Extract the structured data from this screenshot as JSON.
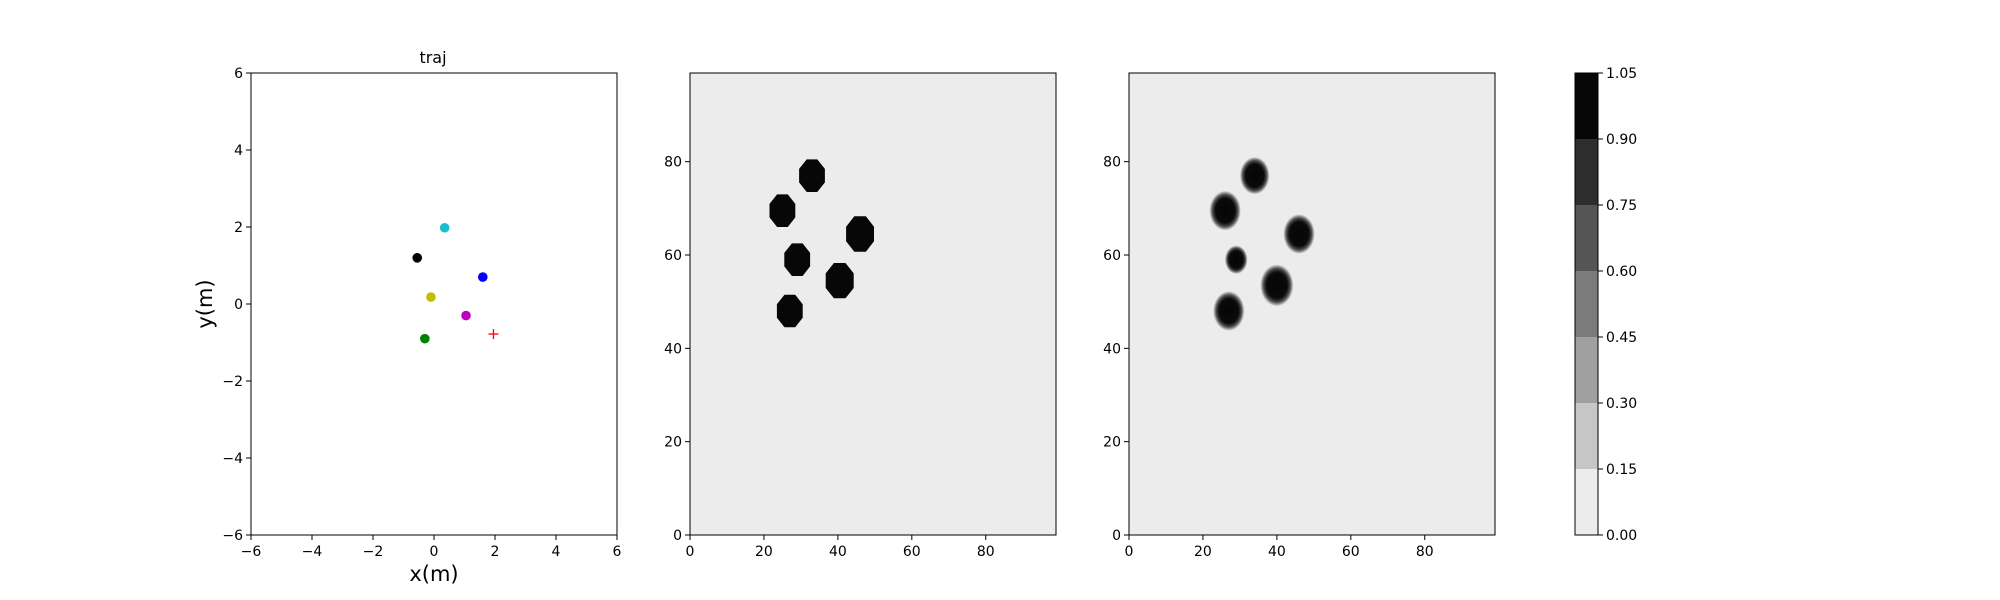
{
  "chart_data": [
    {
      "type": "scatter",
      "title": "traj",
      "xlabel": "x(m)",
      "ylabel": "y(m)",
      "xlim": [
        -6,
        6
      ],
      "ylim": [
        -6,
        6
      ],
      "xticks": [
        "−6",
        "−4",
        "−2",
        "0",
        "2",
        "4",
        "6"
      ],
      "yticks": [
        "−6",
        "−4",
        "−2",
        "0",
        "2",
        "4",
        "6"
      ],
      "grid": false,
      "points": [
        {
          "x": 0.35,
          "y": 1.98,
          "color": "#17becf",
          "marker": "circle"
        },
        {
          "x": -0.55,
          "y": 1.2,
          "color": "#000000",
          "marker": "circle"
        },
        {
          "x": 1.6,
          "y": 0.7,
          "color": "#0000ff",
          "marker": "circle"
        },
        {
          "x": -0.1,
          "y": 0.18,
          "color": "#bfbf00",
          "marker": "circle"
        },
        {
          "x": 1.05,
          "y": -0.3,
          "color": "#bf00bf",
          "marker": "circle"
        },
        {
          "x": -0.3,
          "y": -0.9,
          "color": "#008000",
          "marker": "circle"
        },
        {
          "x": 1.95,
          "y": -0.78,
          "color": "#ff0000",
          "marker": "plus"
        }
      ]
    },
    {
      "type": "heatmap",
      "xlim": [
        0,
        99
      ],
      "ylim": [
        0,
        99
      ],
      "xticks": [
        "0",
        "20",
        "40",
        "60",
        "80"
      ],
      "yticks": [
        "0",
        "20",
        "40",
        "60",
        "80"
      ],
      "background_value": 0.05,
      "blobs": [
        {
          "x": 33,
          "y": 77,
          "r": 3.6,
          "value": 1.0,
          "edge": "sharp"
        },
        {
          "x": 25,
          "y": 69.5,
          "r": 3.6,
          "value": 1.0,
          "edge": "sharp"
        },
        {
          "x": 46,
          "y": 64.5,
          "r": 3.9,
          "value": 1.0,
          "edge": "sharp"
        },
        {
          "x": 29,
          "y": 59,
          "r": 3.6,
          "value": 1.0,
          "edge": "sharp"
        },
        {
          "x": 40.5,
          "y": 54.5,
          "r": 3.9,
          "value": 1.0,
          "edge": "sharp"
        },
        {
          "x": 27,
          "y": 48,
          "r": 3.6,
          "value": 1.0,
          "edge": "sharp"
        }
      ]
    },
    {
      "type": "heatmap",
      "xlim": [
        0,
        99
      ],
      "ylim": [
        0,
        99
      ],
      "xticks": [
        "0",
        "20",
        "40",
        "60",
        "80"
      ],
      "yticks": [
        "0",
        "20",
        "40",
        "60",
        "80"
      ],
      "background_value": 0.05,
      "blobs": [
        {
          "x": 34,
          "y": 77,
          "r": 3.4,
          "value": 1.0,
          "edge": "fuzzy"
        },
        {
          "x": 26,
          "y": 69.5,
          "r": 3.6,
          "value": 1.0,
          "edge": "fuzzy"
        },
        {
          "x": 46,
          "y": 64.5,
          "r": 3.6,
          "value": 1.0,
          "edge": "fuzzy"
        },
        {
          "x": 29,
          "y": 59,
          "r": 2.6,
          "value": 0.95,
          "edge": "fuzzy"
        },
        {
          "x": 40,
          "y": 53.5,
          "r": 3.8,
          "value": 1.0,
          "edge": "fuzzy"
        },
        {
          "x": 27,
          "y": 48,
          "r": 3.6,
          "value": 1.0,
          "edge": "fuzzy"
        }
      ]
    },
    {
      "type": "colorbar",
      "levels": [
        0.0,
        0.15,
        0.3,
        0.45,
        0.6,
        0.75,
        0.9,
        1.05
      ],
      "tick_labels": [
        "0.00",
        "0.15",
        "0.30",
        "0.45",
        "0.60",
        "0.75",
        "0.90",
        "1.05"
      ],
      "colors": [
        "#ececec",
        "#c6c6c6",
        "#a0a0a0",
        "#7b7b7b",
        "#555555",
        "#2d2d2d",
        "#070707"
      ]
    }
  ]
}
